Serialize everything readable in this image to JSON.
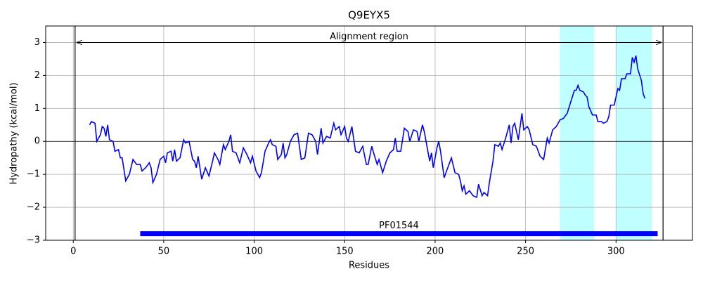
{
  "chart_data": {
    "type": "line",
    "title": "Q9EYX5",
    "xlabel": "Residues",
    "ylabel": "Hydropathy (kcal/mol)",
    "color": "#0000ff",
    "x": [
      9,
      10,
      12,
      13,
      15,
      16,
      17,
      18,
      19,
      20,
      22,
      23,
      25,
      26,
      27,
      29,
      31,
      33,
      35,
      37,
      38,
      40,
      42,
      43,
      44,
      46,
      48,
      50,
      51,
      52,
      54,
      55,
      56,
      57,
      59,
      61,
      62,
      64,
      66,
      67,
      68,
      69,
      71,
      73,
      75,
      77,
      78,
      80,
      81,
      83,
      84,
      86,
      87,
      88,
      90,
      92,
      94,
      96,
      98,
      99,
      101,
      103,
      104,
      106,
      108,
      109,
      110,
      112,
      113,
      115,
      116,
      117,
      118,
      120,
      122,
      124,
      126,
      128,
      130,
      132,
      134,
      135,
      137,
      138,
      140,
      142,
      144,
      145,
      147,
      148,
      150,
      151,
      152,
      154,
      156,
      158,
      160,
      162,
      163,
      165,
      166,
      168,
      169,
      171,
      173,
      175,
      177,
      178,
      179,
      181,
      183,
      185,
      186,
      188,
      190,
      191,
      193,
      194,
      196,
      197,
      198,
      199,
      201,
      202,
      203,
      205,
      207,
      209,
      211,
      213,
      214,
      215,
      216,
      217,
      219,
      221,
      223,
      224,
      226,
      227,
      229,
      230,
      232,
      233,
      235,
      236,
      237,
      239,
      241,
      242,
      243,
      244,
      246,
      248,
      249,
      251,
      252,
      254,
      256,
      258,
      260,
      262,
      263,
      265,
      267,
      269,
      271,
      273,
      275,
      277,
      278,
      279,
      280,
      282,
      283,
      284,
      285,
      287,
      289,
      290,
      292,
      293,
      295,
      296,
      297,
      299,
      300,
      301,
      302,
      303,
      305,
      306,
      308,
      309,
      310,
      311,
      312,
      314,
      315,
      316
    ],
    "values": [
      0.5,
      0.6,
      0.55,
      0.0,
      0.2,
      0.45,
      0.4,
      0.15,
      0.5,
      0.05,
      0.0,
      -0.3,
      -0.25,
      -0.5,
      -0.5,
      -1.2,
      -1.0,
      -0.55,
      -0.7,
      -0.7,
      -0.9,
      -0.8,
      -0.65,
      -0.8,
      -1.25,
      -1.0,
      -0.55,
      -0.45,
      -0.65,
      -0.35,
      -0.3,
      -0.6,
      -0.25,
      -0.6,
      -0.5,
      0.05,
      -0.05,
      0.0,
      -0.55,
      -0.6,
      -0.8,
      -0.45,
      -1.15,
      -0.8,
      -1.05,
      -0.6,
      -0.35,
      -0.55,
      -0.7,
      -0.1,
      -0.25,
      0.0,
      0.2,
      -0.3,
      -0.35,
      -0.65,
      -0.2,
      -0.4,
      -0.65,
      -0.45,
      -0.9,
      -1.1,
      -0.95,
      -0.3,
      -0.05,
      0.05,
      -0.1,
      -0.15,
      -0.55,
      -0.4,
      -0.05,
      -0.5,
      -0.4,
      0.0,
      0.2,
      0.25,
      -0.55,
      -0.5,
      0.25,
      0.2,
      0.0,
      -0.4,
      0.4,
      -0.05,
      0.15,
      0.1,
      0.55,
      0.35,
      0.45,
      0.2,
      0.45,
      0.1,
      0.0,
      0.45,
      -0.3,
      -0.35,
      -0.15,
      -0.7,
      -0.7,
      -0.15,
      -0.35,
      -0.7,
      -0.55,
      -0.95,
      -0.6,
      -0.35,
      -0.25,
      0.1,
      -0.3,
      -0.3,
      0.4,
      0.3,
      0.0,
      0.35,
      0.3,
      0.0,
      0.5,
      0.3,
      -0.3,
      -0.6,
      -0.35,
      -0.8,
      -0.2,
      0.0,
      -0.3,
      -1.1,
      -0.8,
      -0.5,
      -0.95,
      -1.0,
      -1.2,
      -1.5,
      -1.35,
      -1.6,
      -1.5,
      -1.65,
      -1.7,
      -1.3,
      -1.65,
      -1.55,
      -1.65,
      -1.25,
      -0.6,
      -0.1,
      -0.15,
      -0.05,
      -0.25,
      0.1,
      0.5,
      -0.05,
      0.45,
      0.55,
      0.05,
      0.85,
      0.35,
      0.45,
      0.35,
      -0.1,
      -0.15,
      -0.45,
      -0.55,
      0.1,
      -0.05,
      0.35,
      0.45,
      0.65,
      0.7,
      0.85,
      1.2,
      1.55,
      1.55,
      1.7,
      1.55,
      1.5,
      1.4,
      1.35,
      1.05,
      0.8,
      0.8,
      0.6,
      0.6,
      0.55,
      0.6,
      0.75,
      1.1,
      1.1,
      1.35,
      1.6,
      1.55,
      1.9,
      1.9,
      2.05,
      2.05,
      2.55,
      2.4,
      2.6,
      2.2,
      1.85,
      1.45,
      1.3
    ],
    "xlim": [
      -15.25,
      342.25
    ],
    "ylim": [
      -3,
      3.5
    ],
    "xticks": [
      0,
      50,
      100,
      150,
      200,
      250,
      300
    ],
    "yticks": [
      {
        "value": -3,
        "label": "−3"
      },
      {
        "value": -2,
        "label": "−2"
      },
      {
        "value": -1,
        "label": "−1"
      },
      0,
      1,
      2,
      3
    ],
    "grid": true,
    "regions": [
      {
        "start": 269,
        "end": 288
      },
      {
        "start": 300,
        "end": 320
      }
    ],
    "region_color": "#c0ffff",
    "alignment": {
      "label": "Alignment region",
      "start": 1,
      "end": 326,
      "y": 3
    },
    "domain": {
      "label": "PF01544",
      "start": 37,
      "end": 323,
      "y": -2.8,
      "color": "#0000ff"
    }
  }
}
